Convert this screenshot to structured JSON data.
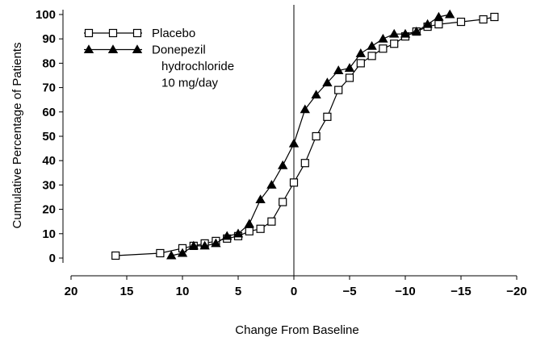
{
  "chart_data": {
    "type": "line",
    "title": "",
    "xlabel": "Change From Baseline",
    "ylabel": "Cumulative Percentage of Patients",
    "xlim": [
      20,
      -20
    ],
    "ylim": [
      0,
      100
    ],
    "x_reversed": true,
    "x_ticks": [
      20,
      15,
      10,
      5,
      0,
      -5,
      -10,
      -15,
      -20
    ],
    "x_tick_labels": [
      "20",
      "15",
      "10",
      "5",
      "0",
      "−5",
      "−10",
      "−15",
      "−20"
    ],
    "y_ticks": [
      0,
      10,
      20,
      30,
      40,
      50,
      60,
      70,
      80,
      90,
      100
    ],
    "y_tick_labels": [
      "0",
      "10",
      "20",
      "30",
      "40",
      "50",
      "60",
      "70",
      "80",
      "90",
      "100"
    ],
    "grid": false,
    "reference_line_x": 0,
    "legend": {
      "placement": "top-left",
      "entries": [
        {
          "marker": "open-square",
          "lines": [
            "Placebo"
          ]
        },
        {
          "marker": "filled-triangle",
          "lines": [
            "Donepezil",
            "hydrochloride",
            "10 mg/day"
          ]
        }
      ]
    },
    "series": [
      {
        "marker": "open-square",
        "color": "#000000",
        "x": [
          16,
          12,
          10,
          9,
          8,
          7,
          6,
          5,
          4,
          3,
          2,
          1,
          0,
          -1,
          -2,
          -3,
          -4,
          -5,
          -6,
          -7,
          -8,
          -9,
          -10,
          -11,
          -12,
          -13,
          -15,
          -17,
          -18
        ],
        "y": [
          1,
          2,
          4,
          5,
          6,
          7,
          8,
          9,
          11,
          12,
          15,
          23,
          31,
          39,
          50,
          58,
          69,
          74,
          80,
          83,
          86,
          88,
          91,
          93,
          95,
          96,
          97,
          98,
          99
        ]
      },
      {
        "marker": "filled-triangle",
        "color": "#000000",
        "x": [
          11,
          10,
          9,
          8,
          7,
          6,
          5,
          4,
          3,
          2,
          1,
          0,
          -1,
          -2,
          -3,
          -4,
          -5,
          -6,
          -7,
          -8,
          -9,
          -10,
          -11,
          -12,
          -13,
          -14
        ],
        "y": [
          1,
          2,
          5,
          5,
          6,
          9,
          10,
          14,
          24,
          30,
          38,
          47,
          61,
          67,
          72,
          77,
          78,
          84,
          87,
          90,
          92,
          92,
          93,
          96,
          99,
          100
        ]
      }
    ]
  }
}
